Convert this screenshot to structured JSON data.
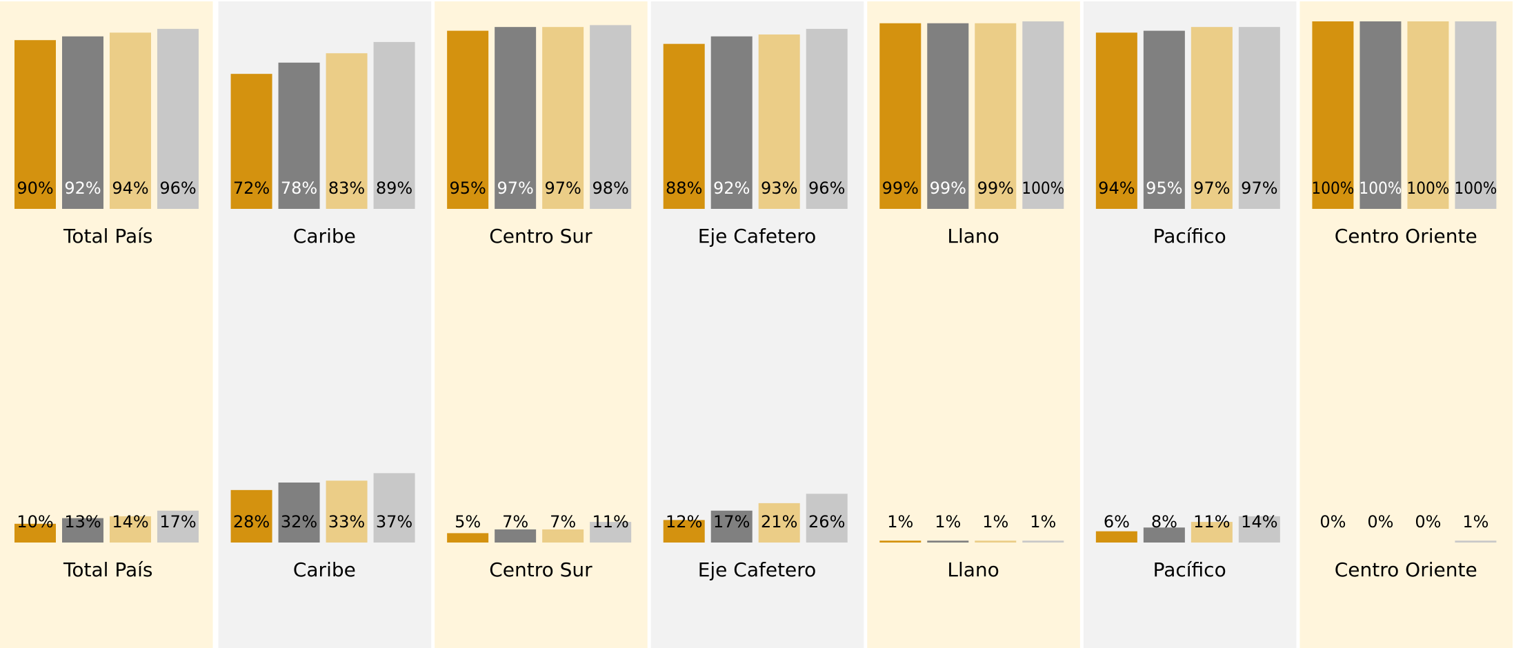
{
  "chart_data": [
    {
      "type": "bar",
      "categories": [
        "Total País",
        "Caribe",
        "Centro Sur",
        "Eje Cafetero",
        "Llano",
        "Pacífico",
        "Centro Oriente"
      ],
      "ylim": [
        0,
        100
      ],
      "panel_colors": [
        "#fff5dc",
        "#f2f2f2"
      ],
      "series": [
        {
          "color": "#d4920f",
          "label_color": "#000000",
          "values": [
            90,
            72,
            95,
            88,
            99,
            94,
            100
          ],
          "value_labels": [
            "90%",
            "72%",
            "95%",
            "88%",
            "99%",
            "94%",
            "100%"
          ]
        },
        {
          "color": "#808080",
          "label_color": "#ffffff",
          "values": [
            92,
            78,
            97,
            92,
            99,
            95,
            100
          ],
          "value_labels": [
            "92%",
            "78%",
            "97%",
            "92%",
            "99%",
            "95%",
            "100%"
          ]
        },
        {
          "color": "#ebcd87",
          "label_color": "#000000",
          "values": [
            94,
            83,
            97,
            93,
            99,
            97,
            100
          ],
          "value_labels": [
            "94%",
            "83%",
            "97%",
            "93%",
            "99%",
            "97%",
            "100%"
          ]
        },
        {
          "color": "#c8c8c8",
          "label_color": "#000000",
          "values": [
            96,
            89,
            98,
            96,
            100,
            97,
            100
          ],
          "value_labels": [
            "96%",
            "89%",
            "98%",
            "96%",
            "100%",
            "97%",
            "100%"
          ]
        }
      ]
    },
    {
      "type": "bar",
      "categories": [
        "Total País",
        "Caribe",
        "Centro Sur",
        "Eje Cafetero",
        "Llano",
        "Pacífico",
        "Centro Oriente"
      ],
      "ylim": [
        0,
        100
      ],
      "panel_colors": [
        "#fff5dc",
        "#f2f2f2"
      ],
      "series": [
        {
          "color": "#d4920f",
          "label_color": "#000000",
          "values": [
            10,
            28,
            5,
            12,
            1,
            6,
            0
          ],
          "value_labels": [
            "10%",
            "28%",
            "5%",
            "12%",
            "1%",
            "6%",
            "0%"
          ]
        },
        {
          "color": "#808080",
          "label_color": "#000000",
          "values": [
            13,
            32,
            7,
            17,
            1,
            8,
            0
          ],
          "value_labels": [
            "13%",
            "32%",
            "7%",
            "17%",
            "1%",
            "8%",
            "0%"
          ]
        },
        {
          "color": "#ebcd87",
          "label_color": "#000000",
          "values": [
            14,
            33,
            7,
            21,
            1,
            11,
            0
          ],
          "value_labels": [
            "14%",
            "33%",
            "7%",
            "21%",
            "1%",
            "11%",
            "0%"
          ]
        },
        {
          "color": "#c8c8c8",
          "label_color": "#000000",
          "values": [
            17,
            37,
            11,
            26,
            1,
            14,
            1
          ],
          "value_labels": [
            "17%",
            "37%",
            "11%",
            "26%",
            "1%",
            "14%",
            "1%"
          ]
        }
      ]
    }
  ]
}
